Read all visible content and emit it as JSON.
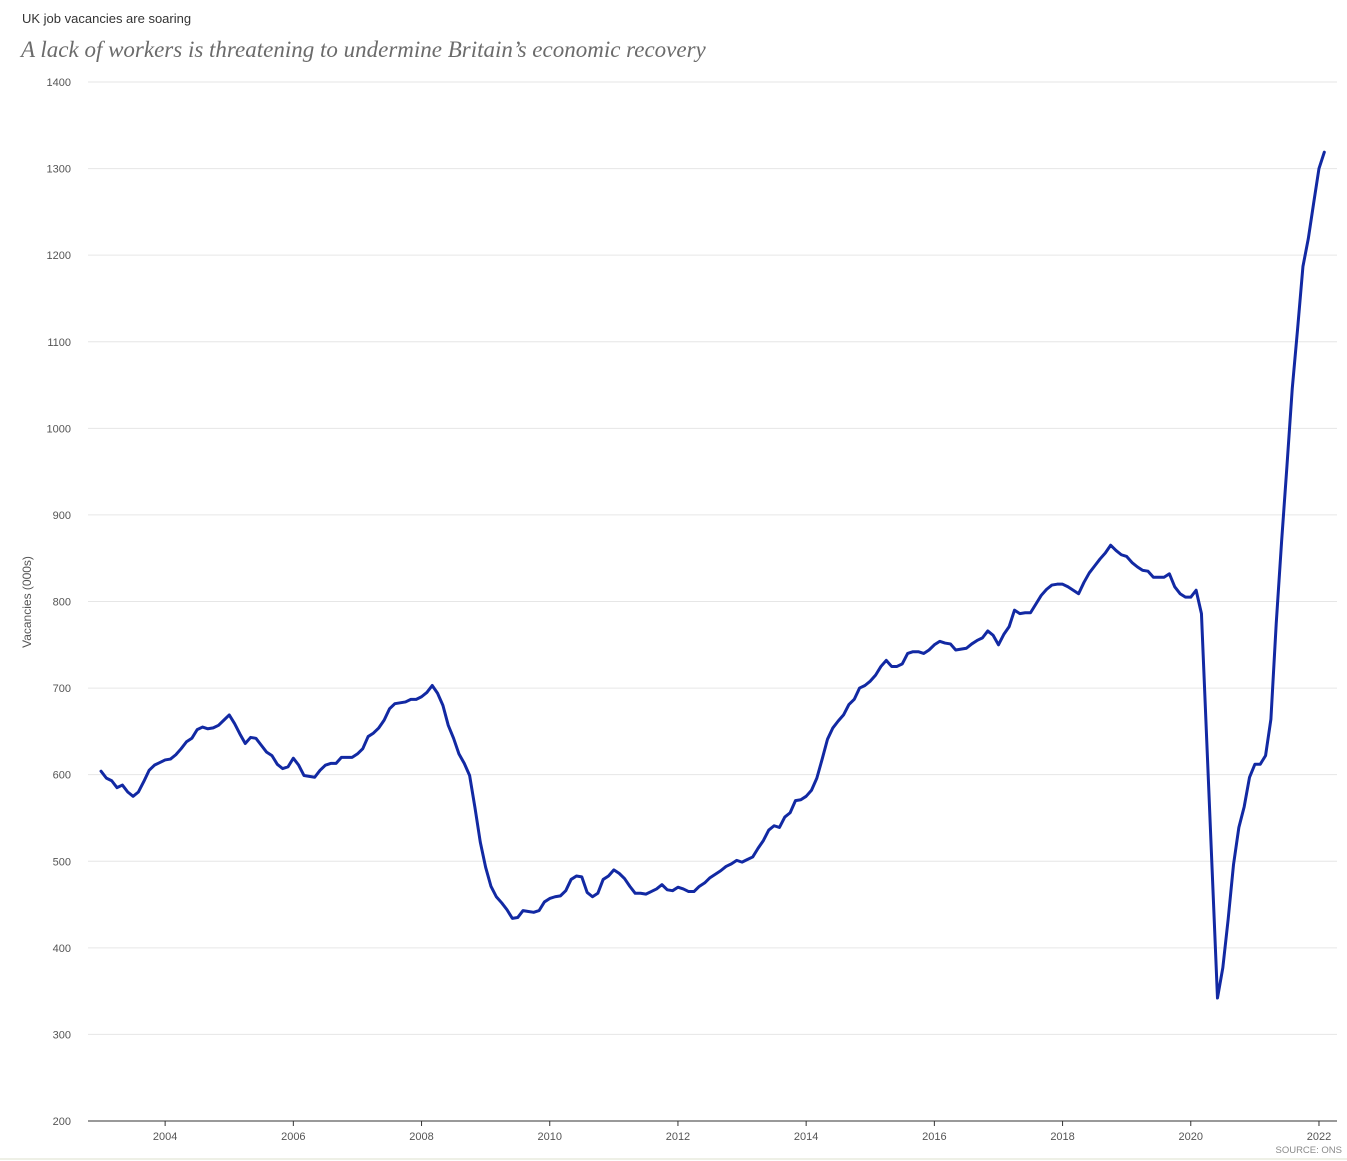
{
  "chart_data": {
    "type": "line",
    "title": "UK job vacancies are soaring",
    "subtitle": "A lack of workers is threatening to undermine Britain’s economic recovery",
    "ylabel": "Vacancies (000s)",
    "source": "SOURCE: ONS",
    "ylim": [
      200,
      1400
    ],
    "xlim": [
      "2002-10",
      "2022-04"
    ],
    "yticks": [
      200,
      300,
      400,
      500,
      600,
      700,
      800,
      900,
      1000,
      1100,
      1200,
      1300,
      1400
    ],
    "xticks": [
      "2004",
      "2006",
      "2008",
      "2010",
      "2012",
      "2014",
      "2016",
      "2018",
      "2020",
      "2022"
    ],
    "grid": {
      "horizontal": true,
      "vertical": false
    },
    "x": [
      "2003-01",
      "2003-02",
      "2003-03",
      "2003-04",
      "2003-05",
      "2003-06",
      "2003-07",
      "2003-08",
      "2003-09",
      "2003-10",
      "2003-11",
      "2003-12",
      "2004-01",
      "2004-02",
      "2004-03",
      "2004-04",
      "2004-05",
      "2004-06",
      "2004-07",
      "2004-08",
      "2004-09",
      "2004-10",
      "2004-11",
      "2004-12",
      "2005-01",
      "2005-02",
      "2005-03",
      "2005-04",
      "2005-05",
      "2005-06",
      "2005-07",
      "2005-08",
      "2005-09",
      "2005-10",
      "2005-11",
      "2005-12",
      "2006-01",
      "2006-02",
      "2006-03",
      "2006-04",
      "2006-05",
      "2006-06",
      "2006-07",
      "2006-08",
      "2006-09",
      "2006-10",
      "2006-11",
      "2006-12",
      "2007-01",
      "2007-02",
      "2007-03",
      "2007-04",
      "2007-05",
      "2007-06",
      "2007-07",
      "2007-08",
      "2007-09",
      "2007-10",
      "2007-11",
      "2007-12",
      "2008-01",
      "2008-02",
      "2008-03",
      "2008-04",
      "2008-05",
      "2008-06",
      "2008-07",
      "2008-08",
      "2008-09",
      "2008-10",
      "2008-11",
      "2008-12",
      "2009-01",
      "2009-02",
      "2009-03",
      "2009-04",
      "2009-05",
      "2009-06",
      "2009-07",
      "2009-08",
      "2009-09",
      "2009-10",
      "2009-11",
      "2009-12",
      "2010-01",
      "2010-02",
      "2010-03",
      "2010-04",
      "2010-05",
      "2010-06",
      "2010-07",
      "2010-08",
      "2010-09",
      "2010-10",
      "2010-11",
      "2010-12",
      "2011-01",
      "2011-02",
      "2011-03",
      "2011-04",
      "2011-05",
      "2011-06",
      "2011-07",
      "2011-08",
      "2011-09",
      "2011-10",
      "2011-11",
      "2011-12",
      "2012-01",
      "2012-02",
      "2012-03",
      "2012-04",
      "2012-05",
      "2012-06",
      "2012-07",
      "2012-08",
      "2012-09",
      "2012-10",
      "2012-11",
      "2012-12",
      "2013-01",
      "2013-02",
      "2013-03",
      "2013-04",
      "2013-05",
      "2013-06",
      "2013-07",
      "2013-08",
      "2013-09",
      "2013-10",
      "2013-11",
      "2013-12",
      "2014-01",
      "2014-02",
      "2014-03",
      "2014-04",
      "2014-05",
      "2014-06",
      "2014-07",
      "2014-08",
      "2014-09",
      "2014-10",
      "2014-11",
      "2014-12",
      "2015-01",
      "2015-02",
      "2015-03",
      "2015-04",
      "2015-05",
      "2015-06",
      "2015-07",
      "2015-08",
      "2015-09",
      "2015-10",
      "2015-11",
      "2015-12",
      "2016-01",
      "2016-02",
      "2016-03",
      "2016-04",
      "2016-05",
      "2016-06",
      "2016-07",
      "2016-08",
      "2016-09",
      "2016-10",
      "2016-11",
      "2016-12",
      "2017-01",
      "2017-02",
      "2017-03",
      "2017-04",
      "2017-05",
      "2017-06",
      "2017-07",
      "2017-08",
      "2017-09",
      "2017-10",
      "2017-11",
      "2017-12",
      "2018-01",
      "2018-02",
      "2018-03",
      "2018-04",
      "2018-05",
      "2018-06",
      "2018-07",
      "2018-08",
      "2018-09",
      "2018-10",
      "2018-11",
      "2018-12",
      "2019-01",
      "2019-02",
      "2019-03",
      "2019-04",
      "2019-05",
      "2019-06",
      "2019-07",
      "2019-08",
      "2019-09",
      "2019-10",
      "2019-11",
      "2019-12",
      "2020-01",
      "2020-02",
      "2020-03",
      "2020-04",
      "2020-05",
      "2020-06",
      "2020-07",
      "2020-08",
      "2020-09",
      "2020-10",
      "2020-11",
      "2020-12",
      "2021-01",
      "2021-02",
      "2021-03",
      "2021-04",
      "2021-05",
      "2021-06",
      "2021-07",
      "2021-08",
      "2021-09",
      "2021-10",
      "2021-11",
      "2021-12",
      "2022-01",
      "2022-02"
    ],
    "series": [
      {
        "color": "#1229a3",
        "values": [
          604,
          596,
          593,
          585,
          588,
          580,
          575,
          580,
          592,
          605,
          611,
          614,
          617,
          618,
          623,
          630,
          638,
          642,
          652,
          655,
          653,
          654,
          657,
          663,
          669,
          659,
          647,
          636,
          643,
          642,
          634,
          626,
          622,
          612,
          607,
          609,
          619,
          611,
          599,
          598,
          597,
          605,
          611,
          613,
          613,
          620,
          620,
          620,
          624,
          630,
          644,
          648,
          654,
          663,
          676,
          682,
          683,
          684,
          687,
          687,
          690,
          695,
          703,
          694,
          680,
          657,
          642,
          624,
          613,
          599,
          562,
          522,
          493,
          471,
          459,
          452,
          444,
          434,
          435,
          443,
          442,
          441,
          443,
          453,
          457,
          459,
          460,
          466,
          479,
          483,
          482,
          464,
          459,
          463,
          479,
          483,
          490,
          486,
          480,
          471,
          463,
          463,
          462,
          465,
          468,
          473,
          467,
          466,
          470,
          468,
          465,
          465,
          471,
          475,
          481,
          485,
          489,
          494,
          497,
          501,
          499,
          502,
          505,
          515,
          524,
          536,
          541,
          539,
          551,
          556,
          570,
          571,
          575,
          582,
          596,
          618,
          641,
          654,
          662,
          669,
          681,
          687,
          700,
          703,
          708,
          715,
          725,
          732,
          725,
          725,
          728,
          740,
          742,
          742,
          740,
          744,
          750,
          754,
          752,
          751,
          744,
          745,
          746,
          751,
          755,
          758,
          766,
          761,
          750,
          762,
          771,
          790,
          786,
          787,
          787,
          797,
          807,
          814,
          819,
          820,
          820,
          817,
          813,
          809,
          822,
          833,
          841,
          849,
          856,
          865,
          859,
          854,
          852,
          845,
          840,
          836,
          835,
          828,
          828,
          828,
          832,
          817,
          809,
          805,
          805,
          813,
          786,
          638,
          490,
          342,
          377,
          433,
          496,
          539,
          563,
          597,
          612,
          612,
          622,
          664,
          775,
          869,
          956,
          1046,
          1115,
          1187,
          1219,
          1260,
          1300,
          1319
        ]
      }
    ]
  }
}
